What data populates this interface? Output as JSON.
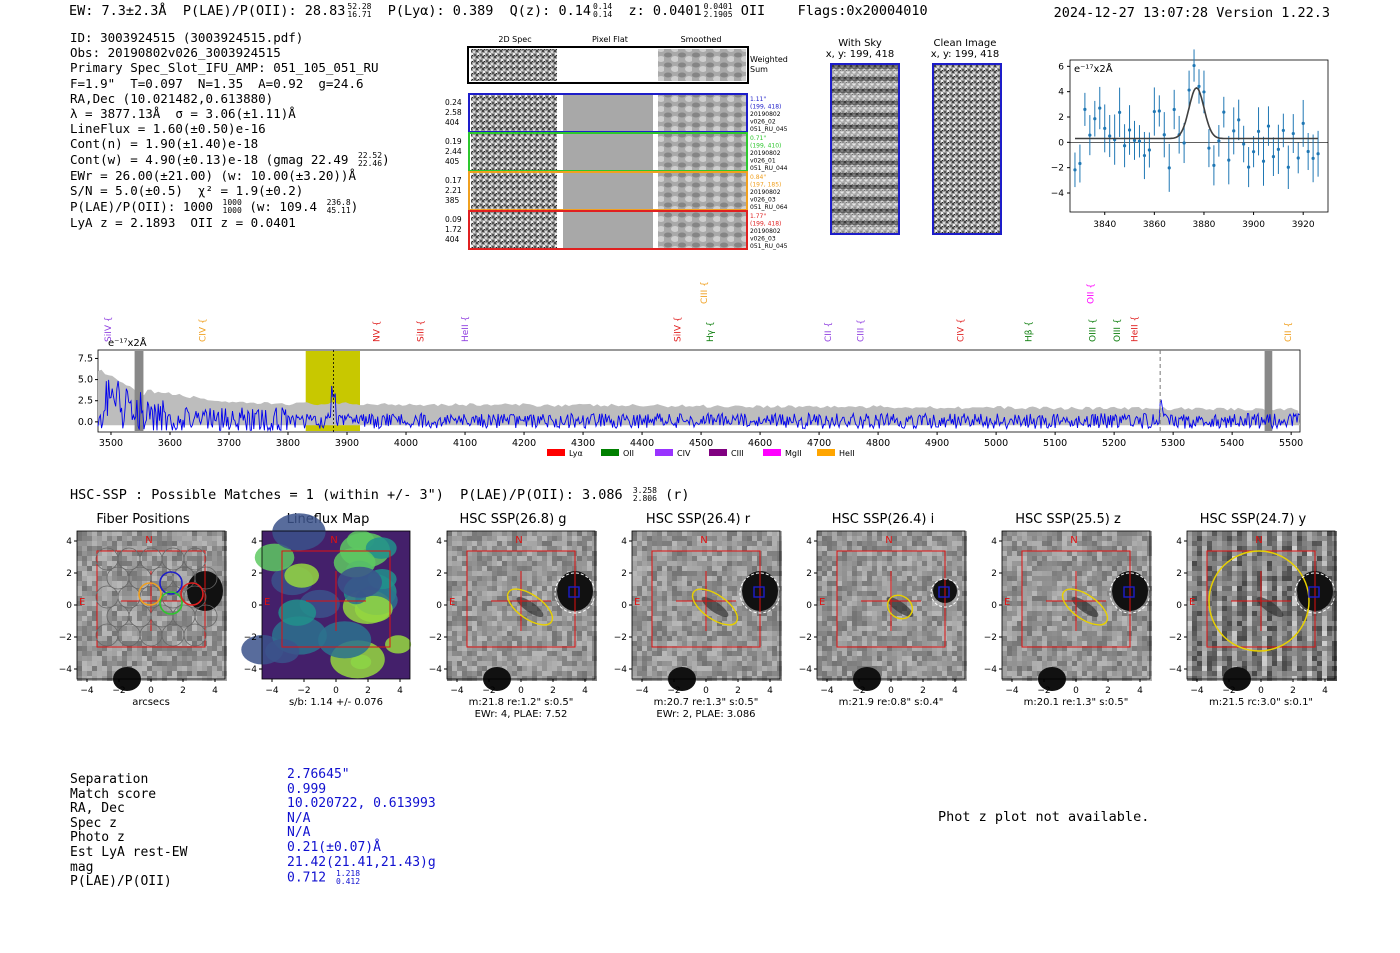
{
  "header": {
    "ew": "EW: 7.3±2.3Å",
    "plae_label": "P(LAE)/P(OII): 28.83",
    "plae_hi": "52.28",
    "plae_lo": "16.71",
    "plya": "P(Lyα): 0.389",
    "qz": "Q(z): 0.14",
    "qz_hi": "0.14",
    "qz_lo": "0.14",
    "z": "z: 0.0401",
    "z_hi": "0.0401",
    "z_lo": "2.1905",
    "z_line": "OII",
    "flags": "Flags:0x20004010",
    "datetime": "2024-12-27 13:07:28",
    "version": "Version 1.22.3"
  },
  "info": {
    "id": "ID: 3003924515 (3003924515.pdf)",
    "obs": "Obs: 20190802v026_3003924515",
    "primary": "Primary Spec_Slot_IFU_AMP: 051_105_051_RU",
    "fparams": "F=1.9\"  T=0.097  N=1.35  A=0.92  g=24.6",
    "radec": "RA,Dec (10.021482,0.613880)",
    "lambda": "λ = 3877.13Å  σ = 3.06(±1.11)Å",
    "lineflux": "LineFlux = 1.60(±0.50)e-16",
    "contn": "Cont(n) = 1.90(±1.40)e-18",
    "contw": "Cont(w) = 4.90(±0.13)e-18 (gmag 22.49",
    "contw_hi": "22.52",
    "contw_lo": "22.46",
    "ewr": "EWr = 26.00(±21.00) (w: 10.00(±3.20))Å",
    "sn": "S/N = 5.0(±0.5)  χ² = 1.9(±0.2)",
    "plae": "P(LAE)/P(OII): 1000",
    "plae_hi": "1000",
    "plae_lo": "1000",
    "plae_w": "(w: 109.4",
    "plae_w_hi": "236.8",
    "plae_w_lo": "45.11",
    "lyaz": "LyA z = 2.1893  OII z = 0.0401"
  },
  "spec2d": {
    "col_titles": [
      "2D Spec",
      "Pixel Flat",
      "Smoothed"
    ],
    "weighted_label": "Weighted Sum",
    "rows": [
      {
        "left": [
          "0.24",
          "2.58",
          "404"
        ],
        "right": [
          "1.11\"",
          "(199, 418)",
          "20190802",
          "v026_02",
          "051_RU_045"
        ],
        "color": "#1d1dc9"
      },
      {
        "left": [
          "0.19",
          "2.44",
          "405"
        ],
        "right": [
          "0.71\"",
          "(199, 410)",
          "20190802",
          "v026_01",
          "051_RU_044"
        ],
        "color": "#2ec72e"
      },
      {
        "left": [
          "0.17",
          "2.21",
          "385"
        ],
        "right": [
          "0.84\"",
          "(197, 185)",
          "20190802",
          "v026_03",
          "051_RU_064"
        ],
        "color": "#f0a020"
      },
      {
        "left": [
          "0.09",
          "1.72",
          "404"
        ],
        "right": [
          "1.77\"",
          "(199, 418)",
          "20190802",
          "v026_03",
          "051_RU_045"
        ],
        "color": "#e02020"
      }
    ]
  },
  "sky": {
    "title": "With Sky",
    "coords": "x, y: 199, 418"
  },
  "clean": {
    "title": "Clean Image",
    "coords": "x, y: 199, 418"
  },
  "zoom_plot": {
    "unit": "e⁻¹⁷x2Å",
    "yticks": [
      "6",
      "4",
      "2",
      "0",
      "−2",
      "−4"
    ],
    "xticks": [
      "3840",
      "3860",
      "3880",
      "3900",
      "3920"
    ]
  },
  "full_spectrum": {
    "unit": "e⁻¹⁷x2Å",
    "yticks": [
      "7.5",
      "5.0",
      "2.5",
      "0.0"
    ],
    "xticks": [
      "3500",
      "3600",
      "3700",
      "3800",
      "3900",
      "4000",
      "4100",
      "4200",
      "4300",
      "4400",
      "4500",
      "4600",
      "4700",
      "4800",
      "4900",
      "5000",
      "5100",
      "5200",
      "5300",
      "5400",
      "5500"
    ],
    "lines": [
      {
        "label": "SiIV",
        "color": "#9040e0",
        "x": 3500
      },
      {
        "label": "CIV",
        "color": "#f0a020",
        "x": 3660
      },
      {
        "label": "NV",
        "color": "#e02020",
        "x": 3955
      },
      {
        "label": "SiII",
        "color": "#e02020",
        "x": 4030
      },
      {
        "label": "HeII",
        "color": "#9040e0",
        "x": 4105
      },
      {
        "label": "CIII",
        "color": "#f0a020",
        "x": 4510
      },
      {
        "label": "SiIV",
        "color": "#e02020",
        "x": 4465
      },
      {
        "label": "Hγ",
        "color": "#108010",
        "x": 4520
      },
      {
        "label": "CII",
        "color": "#9040e0",
        "x": 4720
      },
      {
        "label": "CIII",
        "color": "#9040e0",
        "x": 4775
      },
      {
        "label": "CIV",
        "color": "#e02020",
        "x": 4945
      },
      {
        "label": "Hβ",
        "color": "#108010",
        "x": 5060
      },
      {
        "label": "OII",
        "color": "#ff00ff",
        "x": 5165
      },
      {
        "label": "OIII",
        "color": "#108010",
        "x": 5165
      },
      {
        "label": "OIII",
        "color": "#108010",
        "x": 5210
      },
      {
        "label": "HeII",
        "color": "#e02020",
        "x": 5240
      },
      {
        "label": "CII",
        "color": "#f0a020",
        "x": 5500
      }
    ],
    "legend": [
      {
        "label": "Lyα",
        "color": "#ff0000"
      },
      {
        "label": "OII",
        "color": "#008000"
      },
      {
        "label": "CIV",
        "color": "#9933ff"
      },
      {
        "label": "CIII",
        "color": "#800080"
      },
      {
        "label": "MgII",
        "color": "#ff00ff"
      },
      {
        "label": "HeII",
        "color": "#ffa500"
      }
    ]
  },
  "hsc": {
    "title": "HSC-SSP : Possible Matches = 1 (within +/- 3\")  P(LAE)/P(OII): 3.086",
    "title_hi": "3.258",
    "title_lo": "2.806",
    "title_band": "(r)",
    "cutouts": [
      {
        "title": "Fiber Positions",
        "cap1": "arcsecs",
        "cap2": ""
      },
      {
        "title": "Lineflux Map",
        "cap1": "s/b: 1.14 +/- 0.076",
        "cap2": ""
      },
      {
        "title": "HSC SSP(26.8) g",
        "cap1": "m:21.8  re:1.2\"  s:0.5\"",
        "cap2": "EWr: 4, PLAE: 7.52"
      },
      {
        "title": "HSC SSP(26.4) r",
        "cap1": "m:20.7  re:1.3\"  s:0.5\"",
        "cap2": "EWr: 2, PLAE: 3.086"
      },
      {
        "title": "HSC SSP(26.4) i",
        "cap1": "m:21.9  re:0.8\"  s:0.4\"",
        "cap2": ""
      },
      {
        "title": "HSC SSP(25.5) z",
        "cap1": "m:20.1  re:1.3\"  s:0.5\"",
        "cap2": ""
      },
      {
        "title": "HSC SSP(24.7) y",
        "cap1": "m:21.5  rc:3.0\"  s:0.1\"",
        "cap2": ""
      }
    ],
    "axis_ticks": [
      "−4",
      "−2",
      "0",
      "2",
      "4"
    ],
    "compass_n": "N",
    "compass_e": "E"
  },
  "match": {
    "labels": [
      "Separation",
      "Match score",
      "RA, Dec",
      "Spec z",
      "Photo z",
      "Est LyA rest-EW",
      "mag",
      "P(LAE)/P(OII)"
    ],
    "values": [
      "2.76645\"",
      "0.999",
      "10.020722, 0.613993",
      "N/A",
      "N/A",
      "0.21(±0.07)Å",
      "21.42(21.41,21.43)g",
      "0.712"
    ],
    "plae_hi": "1.218",
    "plae_lo": "0.412"
  },
  "photz": "Phot z plot not available."
}
